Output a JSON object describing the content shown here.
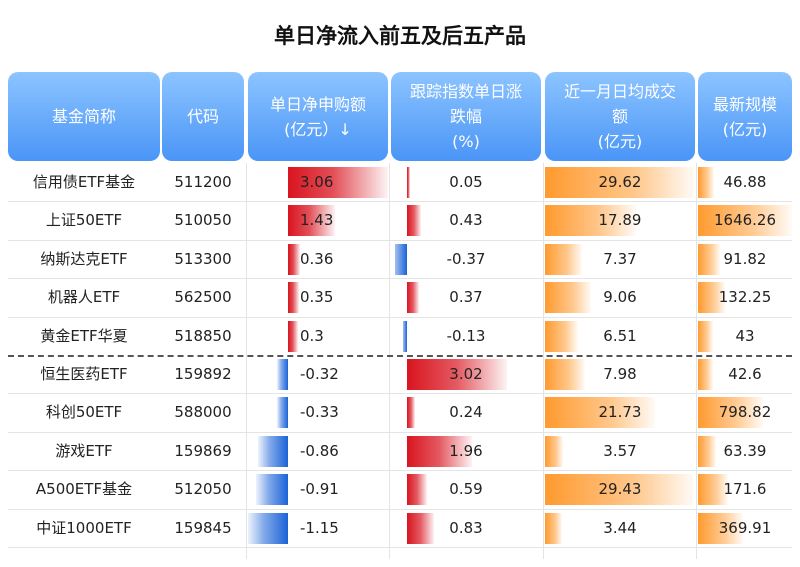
{
  "title": "单日净流入前五及后五产品",
  "headers": [
    {
      "lines": [
        "基金简称"
      ]
    },
    {
      "lines": [
        "代码"
      ]
    },
    {
      "lines": [
        "单日净申购额",
        "(亿元）↓"
      ]
    },
    {
      "lines": [
        "跟踪指数单日涨",
        "跌幅",
        "(%)"
      ]
    },
    {
      "lines": [
        "近一月日均成交",
        "额",
        "(亿元)"
      ]
    },
    {
      "lines": [
        "最新规模",
        "(亿元)"
      ]
    }
  ],
  "rows": [
    {
      "name": "信用债ETF基金",
      "code": "511200",
      "net": "3.06",
      "chg": "0.05",
      "avg": "29.62",
      "scale": "46.88"
    },
    {
      "name": "上证50ETF",
      "code": "510050",
      "net": "1.43",
      "chg": "0.43",
      "avg": "17.89",
      "scale": "1646.26"
    },
    {
      "name": "纳斯达克ETF",
      "code": "513300",
      "net": "0.36",
      "chg": "-0.37",
      "avg": "7.37",
      "scale": "91.82"
    },
    {
      "name": "机器人ETF",
      "code": "562500",
      "net": "0.35",
      "chg": "0.37",
      "avg": "9.06",
      "scale": "132.25"
    },
    {
      "name": "黄金ETF华夏",
      "code": "518850",
      "net": "0.3",
      "chg": "-0.13",
      "avg": "6.51",
      "scale": "43"
    },
    {
      "name": "恒生医药ETF",
      "code": "159892",
      "net": "-0.32",
      "chg": "3.02",
      "avg": "7.98",
      "scale": "42.6"
    },
    {
      "name": "科创50ETF",
      "code": "588000",
      "net": "-0.33",
      "chg": "0.24",
      "avg": "21.73",
      "scale": "798.82"
    },
    {
      "name": "游戏ETF",
      "code": "159869",
      "net": "-0.86",
      "chg": "1.96",
      "avg": "3.57",
      "scale": "63.39"
    },
    {
      "name": "A500ETF基金",
      "code": "512050",
      "net": "-0.91",
      "chg": "0.59",
      "avg": "29.43",
      "scale": "171.6"
    },
    {
      "name": "中证1000ETF",
      "code": "159845",
      "net": "-1.15",
      "chg": "0.83",
      "avg": "3.44",
      "scale": "369.91"
    }
  ],
  "colors": {
    "header_top": "#8cc4ff",
    "header_bottom": "#4a95f7",
    "positive": "#d9141f",
    "negative": "#1b63d8",
    "volume": "#ff9a2e"
  }
}
